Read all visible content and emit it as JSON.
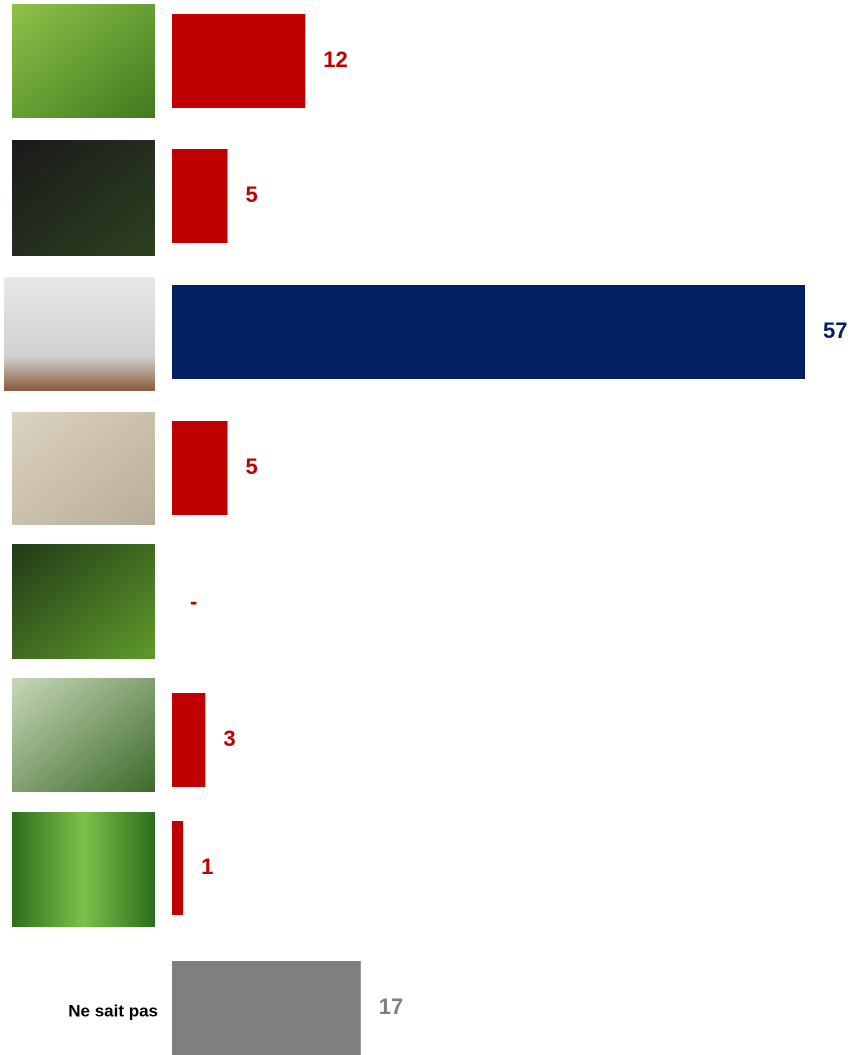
{
  "chart_data": {
    "type": "barh",
    "categories": [
      null,
      null,
      null,
      null,
      null,
      null,
      null,
      "Ne sait pas"
    ],
    "values": [
      12,
      5,
      57,
      5,
      0,
      3,
      1,
      17
    ],
    "value_labels": [
      "12",
      "5",
      "57",
      "5",
      "-",
      "3",
      "1",
      "17"
    ],
    "colors": [
      "#c00000",
      "#c00000",
      "#002060",
      "#c00000",
      "#c00000",
      "#c00000",
      "#c00000",
      "#7f7f7f"
    ]
  }
}
